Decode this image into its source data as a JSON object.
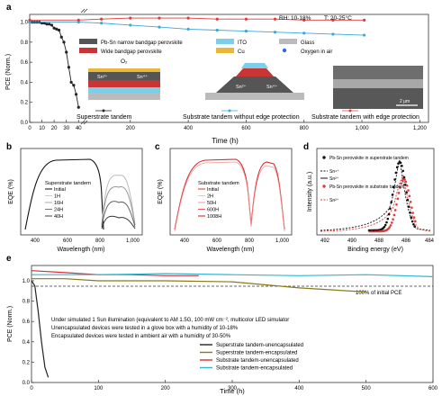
{
  "panel_a": {
    "letter": "a",
    "ylabel": "PCE (Norm.)",
    "xlabel": "Time (h)",
    "left_xticks": [
      "0",
      "10",
      "20",
      "30",
      "40"
    ],
    "right_xticks": [
      "200",
      "400",
      "600",
      "800",
      "1,000",
      "1,200"
    ],
    "yticks": [
      "0.0",
      "0.2",
      "0.4",
      "0.6",
      "0.8",
      "1.0"
    ],
    "conditions": [
      "RH: 10-18%",
      "T: 20-25°C"
    ],
    "legend": [
      "Pb-Sn narrow bandgap perovskite",
      "Wide bandgap perovskite",
      "ITO",
      "Cu",
      "Glass",
      "Oxygen in air"
    ],
    "schematic_labels": [
      "O₂",
      "Sn²⁺",
      "Sn⁴⁺",
      "Sn²⁺",
      "Sn⁴⁺",
      "2 μm"
    ],
    "captions": [
      "Superstrate tandem",
      "Substrate tandem without edge protection",
      "Substrate tandem with edge protection"
    ],
    "colors": {
      "superstrate": "#222222",
      "substrate_no_edge": "#3aa8d8",
      "substrate_edge": "#e03b3b"
    }
  },
  "panel_b": {
    "letter": "b",
    "ylabel": "EQE (%)",
    "xlabel": "Wavelength (nm)",
    "xticks": [
      "400",
      "600",
      "800",
      "1,000"
    ],
    "legend_title": "Superstrate tandem",
    "legend": [
      "Initial",
      "1H",
      "16H",
      "24H",
      "40H"
    ]
  },
  "panel_c": {
    "letter": "c",
    "ylabel": "EQE (%)",
    "xlabel": "Wavelength (nm)",
    "xticks": [
      "400",
      "600",
      "800",
      "1,000"
    ],
    "legend_title": "Substrate tandem",
    "legend": [
      "Initial",
      "2H",
      "50H",
      "600H",
      "1008H"
    ]
  },
  "panel_d": {
    "letter": "d",
    "ylabel": "Intensity (a.u.)",
    "xlabel": "Binding energy (eV)",
    "xticks": [
      "492",
      "490",
      "488",
      "486",
      "484"
    ],
    "legend": [
      "Pb-Sn perovskite in superstrate tandem",
      "Sn⁴⁺",
      "Sn²⁺",
      "Pb-Sn perovskite in substrate tandem",
      "Sn²⁺"
    ]
  },
  "panel_e": {
    "letter": "e",
    "ylabel": "PCE (Norm.)",
    "xlabel": "Time (h)",
    "xticks": [
      "0",
      "100",
      "200",
      "300",
      "400",
      "500",
      "600"
    ],
    "yticks": [
      "0.0",
      "0.2",
      "0.4",
      "0.6",
      "0.8",
      "1.0"
    ],
    "ref_label": "100% of initial PCE",
    "notes": [
      "Under simulated 1 Sun illumination (equivalent to AM 1.5G, 100 mW cm⁻², multicolor LED simulator",
      "Unencapsulated devices were tested in a glove box with a humidity of 10-18%",
      "Encapsulated devices were tested in ambient air with a humidity of 30-50%"
    ],
    "legend": [
      "Superstrate tandem-unencapsulated",
      "Superstrate tandem-encapsulated",
      "Substrate tandem-unencapsulated",
      "Substrate tandem-encapsulated"
    ],
    "colors": [
      "#222222",
      "#8a7a1a",
      "#d93030",
      "#31b7cf"
    ]
  },
  "chart_data": [
    {
      "type": "line",
      "panel": "a",
      "xlabel": "Time (h)",
      "ylabel": "PCE (Norm.)",
      "ylim": [
        0,
        1.05
      ],
      "series": [
        {
          "name": "Superstrate tandem",
          "x": [
            0,
            2,
            4,
            6,
            8,
            10,
            12,
            14,
            16,
            18,
            20,
            22,
            24,
            26,
            28,
            30,
            32,
            34,
            36,
            38,
            40
          ],
          "values": [
            1.0,
            1.0,
            1.0,
            1.0,
            1.0,
            0.99,
            0.99,
            0.98,
            0.98,
            0.97,
            0.94,
            0.93,
            0.92,
            0.85,
            0.8,
            0.7,
            0.55,
            0.4,
            0.37,
            0.28,
            0.15
          ]
        },
        {
          "name": "Substrate tandem without edge protection",
          "x": [
            0,
            40,
            100,
            200,
            300,
            400,
            500,
            600,
            700,
            800,
            900,
            1008
          ],
          "values": [
            1.0,
            1.0,
            0.99,
            0.97,
            0.95,
            0.93,
            0.92,
            0.91,
            0.9,
            0.89,
            0.88,
            0.87
          ]
        },
        {
          "name": "Substrate tandem with edge protection",
          "x": [
            0,
            40,
            100,
            200,
            300,
            400,
            500,
            600,
            700,
            800,
            900,
            1008
          ],
          "values": [
            1.02,
            1.02,
            1.03,
            1.04,
            1.04,
            1.04,
            1.03,
            1.03,
            1.03,
            1.02,
            1.02,
            1.02
          ]
        }
      ]
    },
    {
      "type": "line",
      "panel": "e",
      "xlabel": "Time (h)",
      "ylabel": "PCE (Norm.)",
      "xlim": [
        0,
        600
      ],
      "ylim": [
        0,
        1.15
      ],
      "series": [
        {
          "name": "Superstrate tandem-unencapsulated",
          "x": [
            0,
            5,
            10,
            15,
            20,
            25
          ],
          "values": [
            1.0,
            0.95,
            0.7,
            0.4,
            0.15,
            0.05
          ]
        },
        {
          "name": "Superstrate tandem-encapsulated",
          "x": [
            0,
            50,
            100,
            200,
            300,
            400,
            500
          ],
          "values": [
            1.02,
            1.02,
            1.0,
            1.0,
            0.99,
            0.93,
            0.89
          ]
        },
        {
          "name": "Substrate tandem-unencapsulated",
          "x": [
            0,
            50,
            100,
            150,
            200,
            250
          ],
          "values": [
            1.1,
            1.08,
            1.06,
            1.06,
            1.05,
            1.05
          ]
        },
        {
          "name": "Substrate tandem-encapsulated",
          "x": [
            0,
            100,
            200,
            300,
            400,
            500,
            600
          ],
          "values": [
            1.06,
            1.06,
            1.07,
            1.06,
            1.05,
            1.06,
            1.04
          ]
        }
      ]
    }
  ]
}
